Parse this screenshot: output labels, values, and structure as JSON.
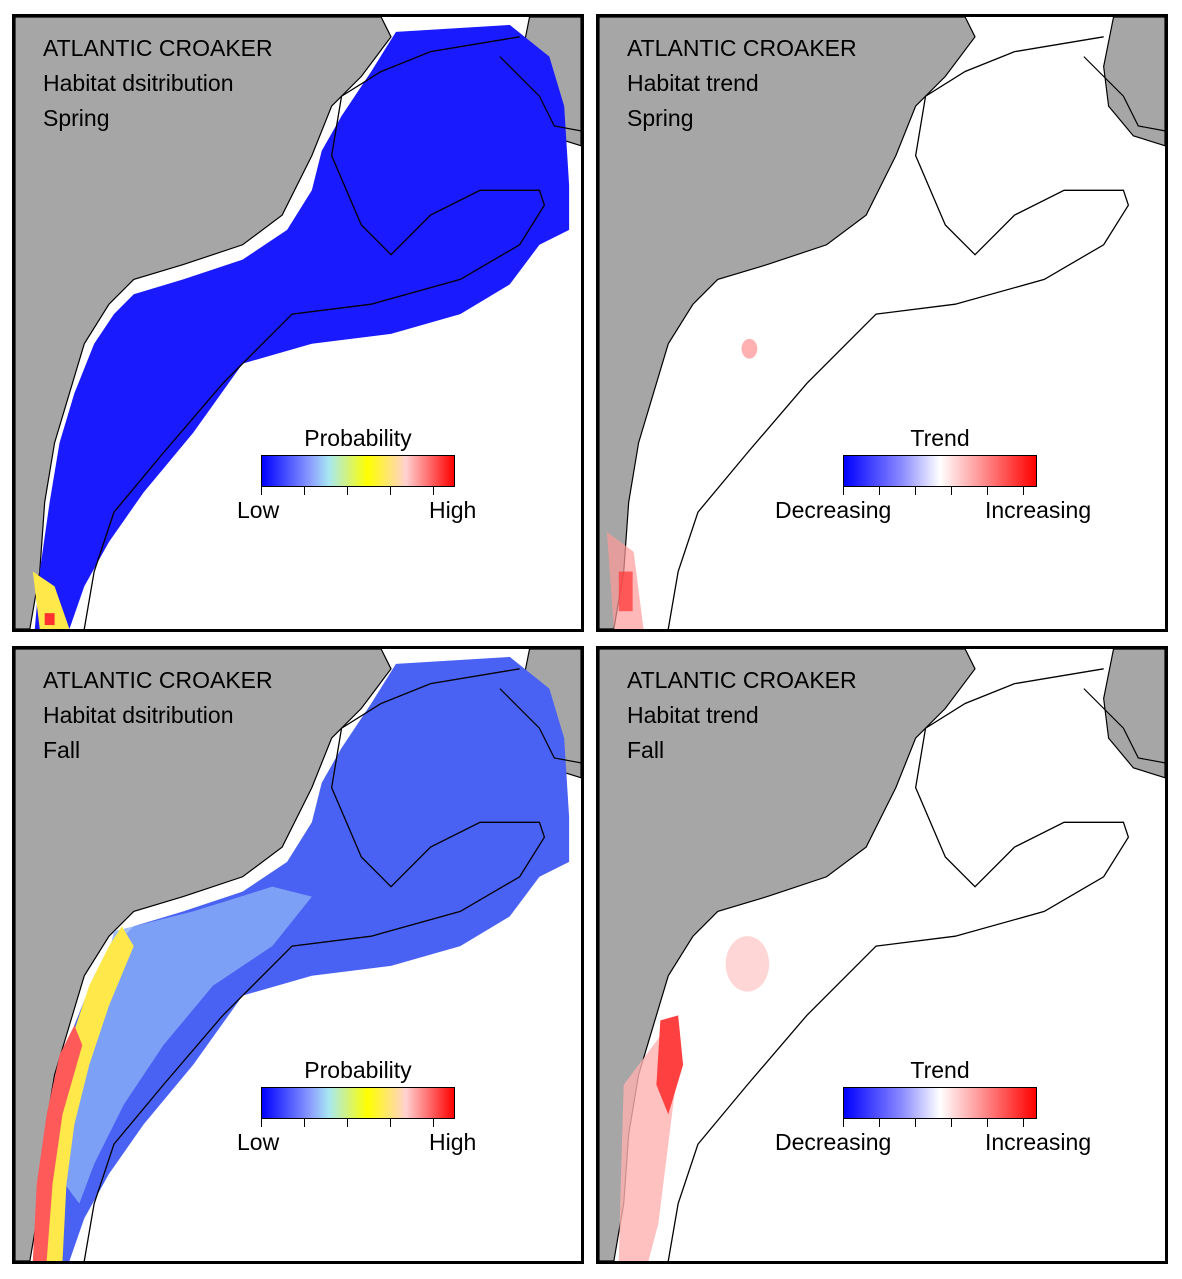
{
  "panels": [
    {
      "species": "ATLANTIC CROAKER",
      "subtitle": "Habitat dsitribution",
      "season": "Spring",
      "kind": "probability",
      "legend": {
        "title": "Probability",
        "low": "Low",
        "high": "High"
      }
    },
    {
      "species": "ATLANTIC CROAKER",
      "subtitle": "Habitat trend",
      "season": "Spring",
      "kind": "trend",
      "legend": {
        "title": "Trend",
        "low": "Decreasing",
        "high": "Increasing"
      }
    },
    {
      "species": "ATLANTIC CROAKER",
      "subtitle": "Habitat dsitribution",
      "season": "Fall",
      "kind": "probability",
      "legend": {
        "title": "Probability",
        "low": "Low",
        "high": "High"
      }
    },
    {
      "species": "ATLANTIC CROAKER",
      "subtitle": "Habitat trend",
      "season": "Fall",
      "kind": "trend",
      "legend": {
        "title": "Trend",
        "low": "Decreasing",
        "high": "Increasing"
      }
    }
  ],
  "colors": {
    "land": "#a6a6a6",
    "ocean": "#ffffff",
    "probability_scale": [
      "#0000ff",
      "#8a9cff",
      "#a8e8f0",
      "#ffff00",
      "#ffd0d0",
      "#ff0000"
    ],
    "trend_scale": [
      "#0000ff",
      "#8a8aff",
      "#ffffff",
      "#ff9a9a",
      "#ff0000"
    ],
    "spring_distribution": "#1a1aff",
    "fall_distribution": "#4a62f4",
    "fall_nearshore": "#ffe94a",
    "fall_coastal_high": "#ff5a5a",
    "trend_increase": "#ff4040"
  }
}
